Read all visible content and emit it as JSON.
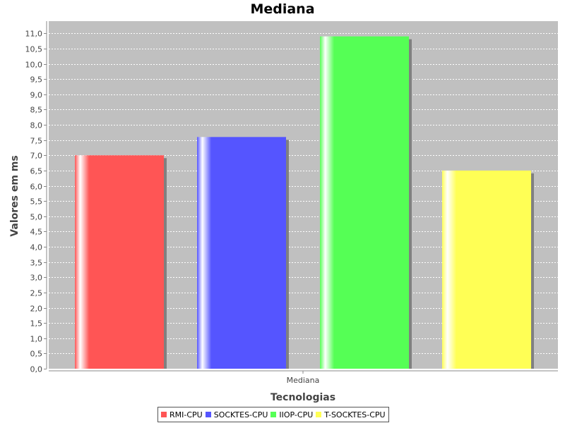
{
  "chart_data": {
    "type": "bar",
    "title": "Mediana",
    "xlabel": "Tecnologias",
    "ylabel": "Valores em ms",
    "categories": [
      "Mediana"
    ],
    "series": [
      {
        "name": "RMI-CPU",
        "values": [
          7.0
        ],
        "color": "#ff5555"
      },
      {
        "name": "SOCKTES-CPU",
        "values": [
          7.6
        ],
        "color": "#5555ff"
      },
      {
        "name": "IIOP-CPU",
        "values": [
          10.9
        ],
        "color": "#55ff55"
      },
      {
        "name": "T-SOCKTES-CPU",
        "values": [
          6.5
        ],
        "color": "#ffff55"
      }
    ],
    "ylim": [
      0,
      11.4
    ],
    "yticks": [
      "0,0",
      "0,5",
      "1,0",
      "1,5",
      "2,0",
      "2,5",
      "3,0",
      "3,5",
      "4,0",
      "4,5",
      "5,0",
      "5,5",
      "6,0",
      "6,5",
      "7,0",
      "7,5",
      "8,0",
      "8,5",
      "9,0",
      "9,5",
      "10,0",
      "10,5",
      "11,0"
    ],
    "ytick_values": [
      0,
      0.5,
      1,
      1.5,
      2,
      2.5,
      3,
      3.5,
      4,
      4.5,
      5,
      5.5,
      6,
      6.5,
      7,
      7.5,
      8,
      8.5,
      9,
      9.5,
      10,
      10.5,
      11
    ],
    "grid": true,
    "legend_position": "bottom",
    "plot_background": "#c0c0c0"
  }
}
